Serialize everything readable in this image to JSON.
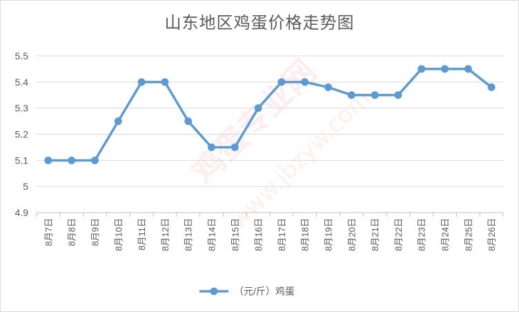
{
  "watermark": {
    "text": "鸡蛋专业网",
    "url": "www.jbzyw.com"
  },
  "chart_data": {
    "type": "line",
    "title": "山东地区鸡蛋价格走势图",
    "categories": [
      "8月7日",
      "8月8日",
      "8月9日",
      "8月10日",
      "8月11日",
      "8月12日",
      "8月13日",
      "8月14日",
      "8月15日",
      "8月16日",
      "8月17日",
      "8月18日",
      "8月19日",
      "8月20日",
      "8月21日",
      "8月22日",
      "8月23日",
      "8月24日",
      "8月25日",
      "8月26日"
    ],
    "series": [
      {
        "name": "（元/斤）鸡蛋",
        "color": "#5B9BD5",
        "values": [
          5.1,
          5.1,
          5.1,
          5.25,
          5.4,
          5.4,
          5.25,
          5.15,
          5.15,
          5.3,
          5.4,
          5.4,
          5.38,
          5.35,
          5.35,
          5.35,
          5.45,
          5.45,
          5.45,
          5.38
        ]
      }
    ],
    "ylim": [
      4.9,
      5.5
    ],
    "yticks": [
      "4.9",
      "5",
      "5.1",
      "5.2",
      "5.3",
      "5.4",
      "5.5"
    ],
    "ytick_values": [
      4.9,
      5.0,
      5.1,
      5.2,
      5.3,
      5.4,
      5.5
    ],
    "grid": true,
    "legend_position": "bottom"
  }
}
